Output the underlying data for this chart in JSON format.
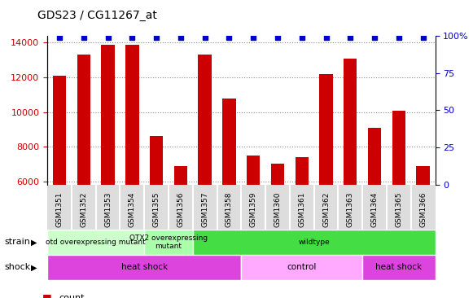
{
  "title": "GDS23 / CG11267_at",
  "samples": [
    "GSM1351",
    "GSM1352",
    "GSM1353",
    "GSM1354",
    "GSM1355",
    "GSM1356",
    "GSM1357",
    "GSM1358",
    "GSM1359",
    "GSM1360",
    "GSM1361",
    "GSM1362",
    "GSM1363",
    "GSM1364",
    "GSM1365",
    "GSM1366"
  ],
  "counts": [
    12100,
    13300,
    13900,
    13900,
    8600,
    6900,
    13300,
    10800,
    7500,
    7000,
    7400,
    12200,
    13100,
    9100,
    10050,
    6900
  ],
  "bar_color": "#cc0000",
  "dot_color": "#0000cc",
  "ylim_left": [
    5800,
    14400
  ],
  "ylim_right": [
    0,
    100
  ],
  "yticks_left": [
    6000,
    8000,
    10000,
    12000,
    14000
  ],
  "yticks_right": [
    0,
    25,
    50,
    75,
    100
  ],
  "ytick_labels_right": [
    "0",
    "25",
    "50",
    "75",
    "100%"
  ],
  "strain_groups": [
    {
      "label": "otd overexpressing mutant",
      "start": 0,
      "end": 4,
      "color": "#ccffcc"
    },
    {
      "label": "OTX2 overexpressing\nmutant",
      "start": 4,
      "end": 6,
      "color": "#aaffaa"
    },
    {
      "label": "wildtype",
      "start": 6,
      "end": 16,
      "color": "#44dd44"
    }
  ],
  "shock_groups": [
    {
      "label": "heat shock",
      "start": 0,
      "end": 8,
      "color": "#dd44dd"
    },
    {
      "label": "control",
      "start": 8,
      "end": 13,
      "color": "#ffaaff"
    },
    {
      "label": "heat shock",
      "start": 13,
      "end": 16,
      "color": "#dd44dd"
    }
  ],
  "strain_label": "strain",
  "shock_label": "shock",
  "bg_color": "#ffffff",
  "grid_color": "#888888",
  "tick_color_left": "#cc0000",
  "tick_color_right": "#0000cc",
  "bar_width": 0.55,
  "dot_size": 5
}
